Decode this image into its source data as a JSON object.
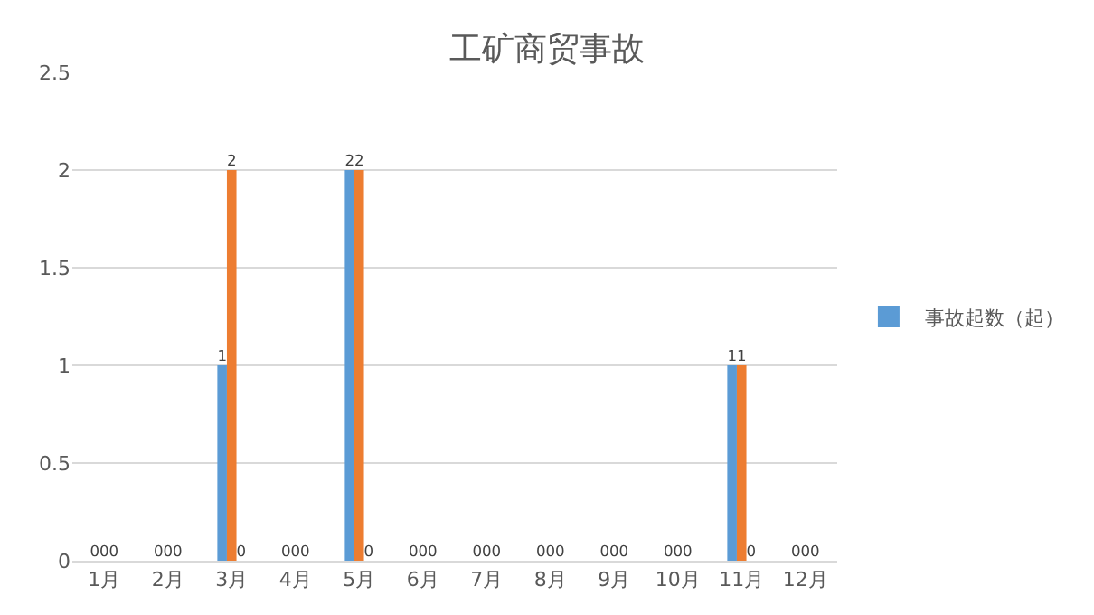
{
  "chart_data": {
    "type": "bar",
    "title": "工矿商贸事故",
    "categories": [
      "1月",
      "2月",
      "3月",
      "4月",
      "5月",
      "6月",
      "7月",
      "8月",
      "9月",
      "10月",
      "11月",
      "12月"
    ],
    "series": [
      {
        "name": "事故起数（起）",
        "color": "#5b9bd5",
        "values": [
          0,
          0,
          1,
          0,
          2,
          0,
          0,
          0,
          0,
          0,
          1,
          0
        ]
      },
      {
        "color": "#ed7d31",
        "values": [
          0,
          0,
          2,
          0,
          2,
          0,
          0,
          0,
          0,
          0,
          1,
          0
        ]
      },
      {
        "color": "#a5a5a5",
        "values": [
          0,
          0,
          0,
          0,
          0,
          0,
          0,
          0,
          0,
          0,
          0,
          0
        ]
      }
    ],
    "ylim": [
      0,
      2.5
    ],
    "yticks": [
      0,
      0.5,
      1,
      1.5,
      2,
      2.5
    ],
    "grid": "y",
    "legend": "right",
    "data_labels": true
  }
}
